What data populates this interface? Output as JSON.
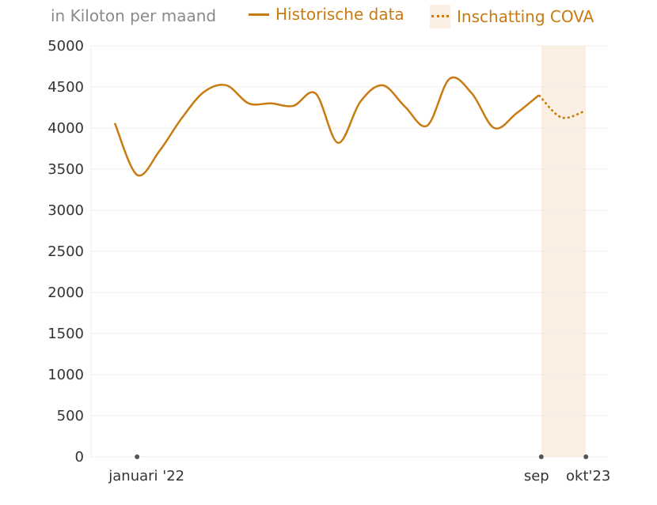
{
  "chart_data": {
    "type": "line",
    "title": "",
    "ylabel": "in Kiloton per maand",
    "ylim": [
      0,
      5000
    ],
    "yticks": [
      0,
      500,
      1000,
      1500,
      2000,
      2500,
      3000,
      3500,
      4000,
      4500,
      5000
    ],
    "grid": true,
    "legend_placement": "top",
    "x_ticks": [
      {
        "index": 1,
        "label": "januari '22"
      },
      {
        "index": 19,
        "label": "sep"
      },
      {
        "index": 21,
        "label": "okt'23"
      }
    ],
    "series": [
      {
        "name": "Historische data",
        "style": "solid",
        "start_index": 0,
        "values": [
          4060,
          3430,
          3720,
          4120,
          4440,
          4520,
          4300,
          4300,
          4270,
          4420,
          3820,
          4320,
          4520,
          4260,
          4030,
          4600,
          4420,
          4000,
          4180,
          4400
        ]
      },
      {
        "name": "Inschatting COVA",
        "style": "dotted",
        "start_index": 19,
        "values": [
          4400,
          4130,
          4200
        ]
      }
    ],
    "highlight_range": [
      19,
      21
    ],
    "colors": {
      "line": "#c97a10",
      "band": "#fbeee2",
      "grid": "#ececec"
    }
  }
}
